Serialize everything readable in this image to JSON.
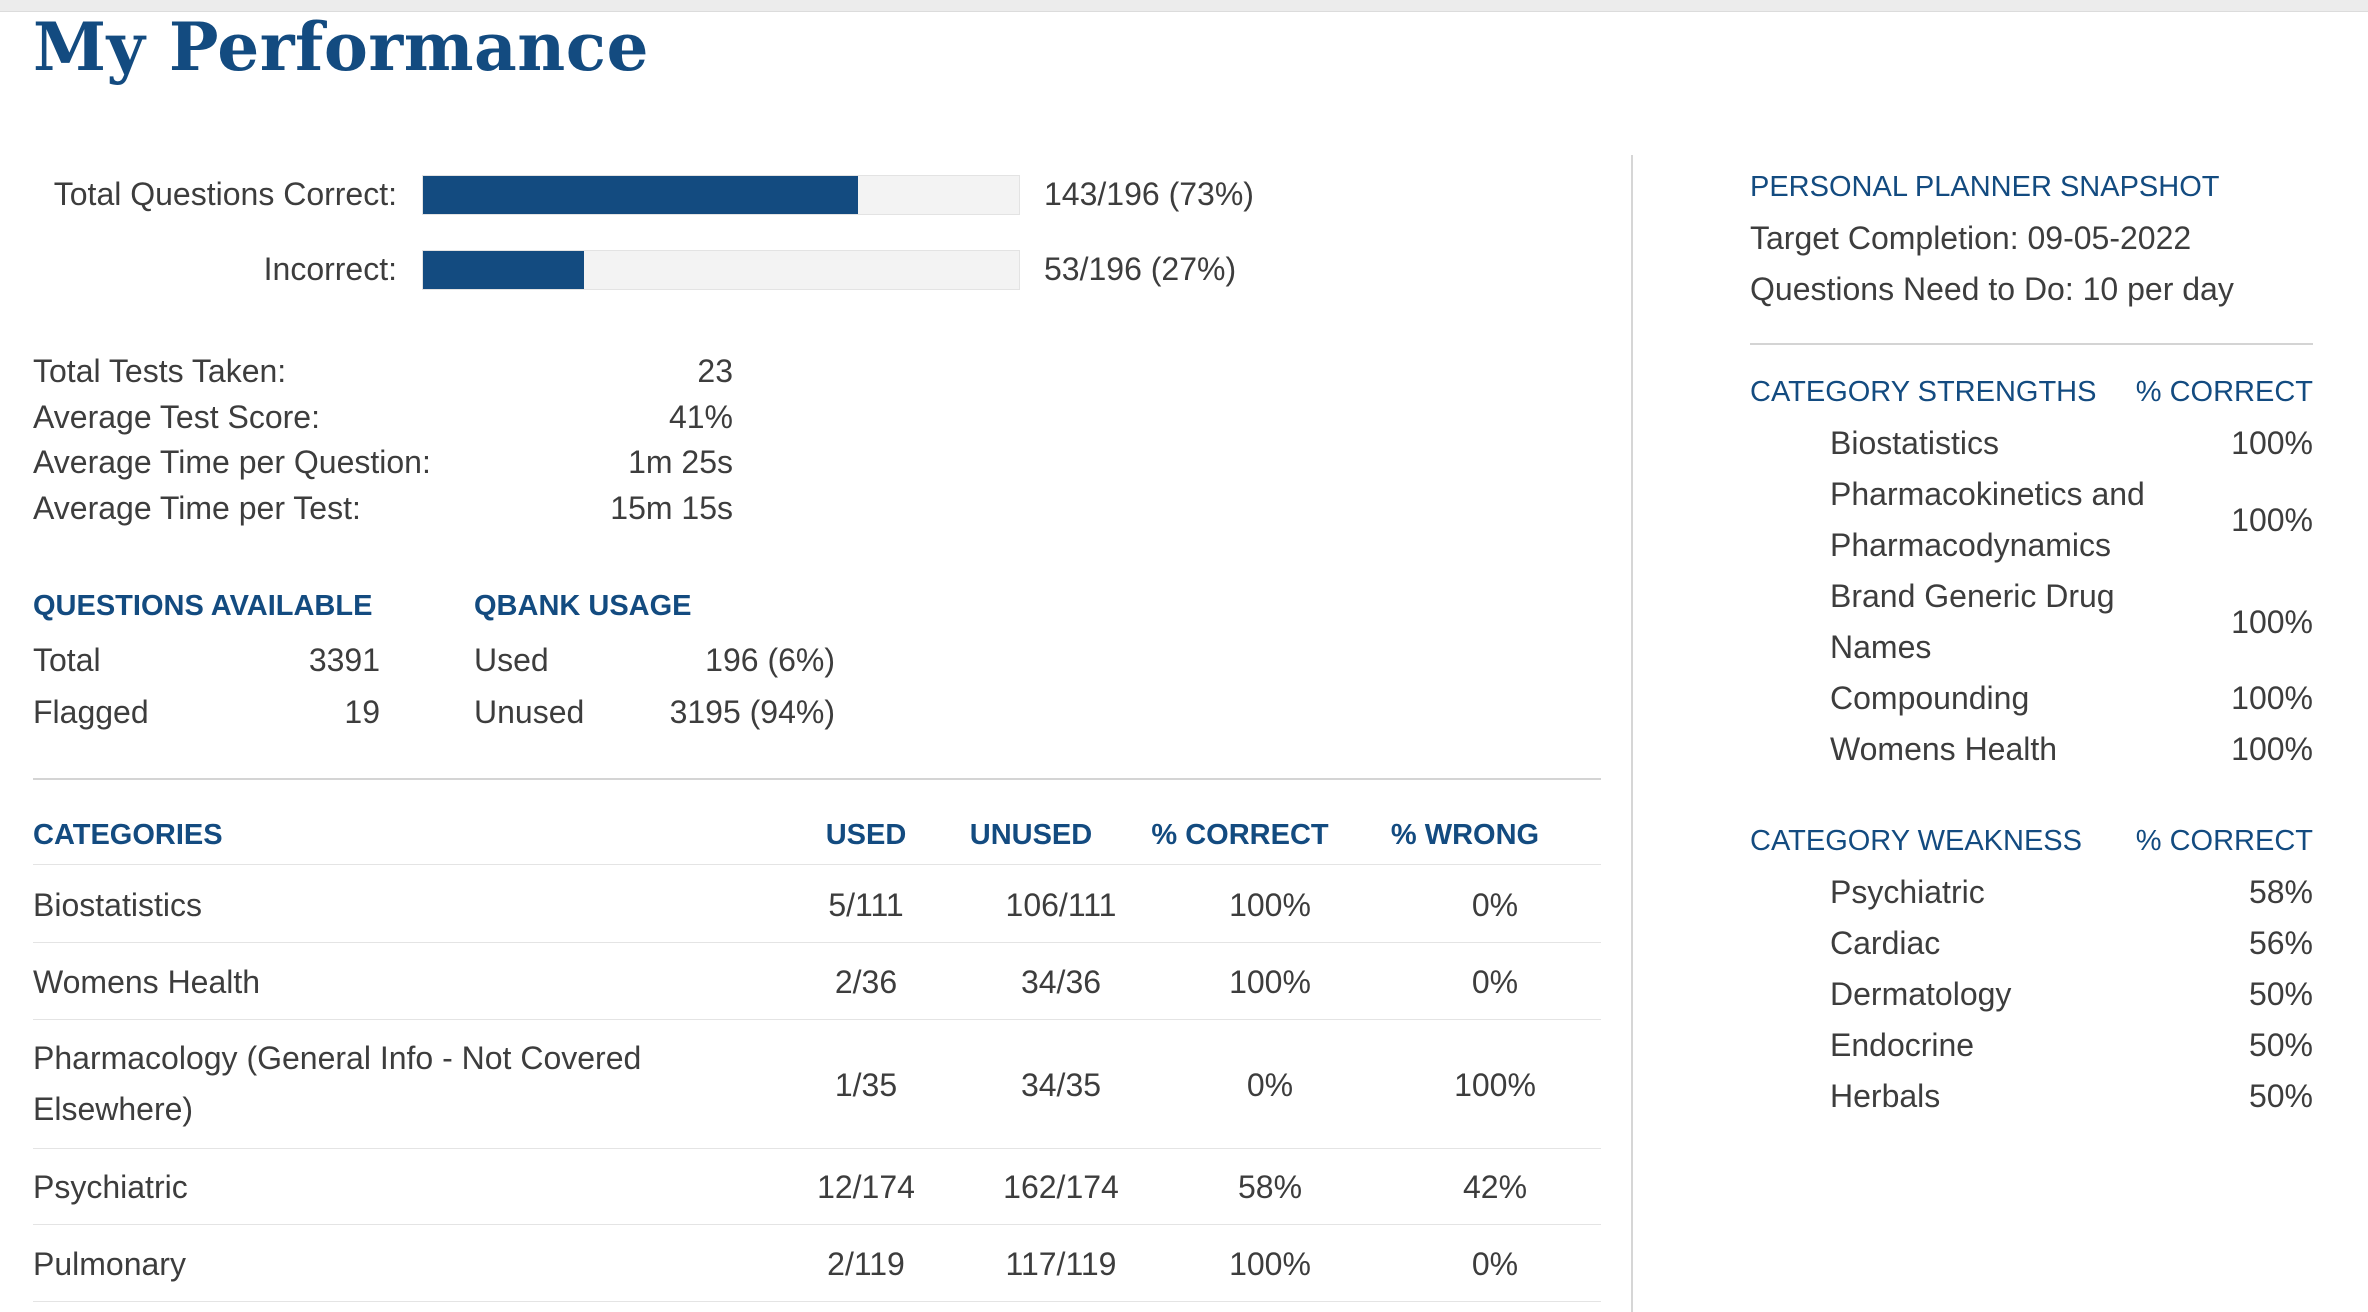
{
  "page_title": "My Performance",
  "score_bars": {
    "correct_label": "Total Questions Correct:",
    "correct_value": "143/196 (73%)",
    "correct_fraction": 0.73,
    "incorrect_label": "Incorrect:",
    "incorrect_value": "53/196 (27%)",
    "incorrect_fraction": 0.27
  },
  "stats": [
    {
      "label": "Total Tests Taken:",
      "value": "23"
    },
    {
      "label": "Average Test Score:",
      "value": "41%"
    },
    {
      "label": "Average Time per Question:",
      "value": "1m 25s"
    },
    {
      "label": "Average Time per Test:",
      "value": "15m 15s"
    }
  ],
  "questions_available": {
    "heading": "QUESTIONS AVAILABLE",
    "rows": [
      {
        "label": "Total",
        "value": "3391"
      },
      {
        "label": "Flagged",
        "value": "19"
      }
    ]
  },
  "qbank_usage": {
    "heading": "QBANK USAGE",
    "rows": [
      {
        "label": "Used",
        "value": "196 (6%)"
      },
      {
        "label": "Unused",
        "value": "3195 (94%)"
      }
    ]
  },
  "categories_table": {
    "headers": {
      "category": "CATEGORIES",
      "used": "USED",
      "unused": "UNUSED",
      "correct": "% CORRECT",
      "wrong": "% WRONG"
    },
    "rows": [
      {
        "name": "Biostatistics",
        "name2": "",
        "used": "5/111",
        "unused": "106/111",
        "correct": "100%",
        "wrong": "0%"
      },
      {
        "name": "Womens Health",
        "name2": "",
        "used": "2/36",
        "unused": "34/36",
        "correct": "100%",
        "wrong": "0%"
      },
      {
        "name": "Pharmacology (General Info - Not Covered",
        "name2": "Elsewhere)",
        "used": "1/35",
        "unused": "34/35",
        "correct": "0%",
        "wrong": "100%"
      },
      {
        "name": "Psychiatric",
        "name2": "",
        "used": "12/174",
        "unused": "162/174",
        "correct": "58%",
        "wrong": "42%"
      },
      {
        "name": "Pulmonary",
        "name2": "",
        "used": "2/119",
        "unused": "117/119",
        "correct": "100%",
        "wrong": "0%"
      }
    ]
  },
  "planner": {
    "heading": "PERSONAL PLANNER SNAPSHOT",
    "target_completion": "Target Completion: 09-05-2022",
    "questions_need": "Questions Need to Do: 10 per day"
  },
  "strengths": {
    "heading": "CATEGORY STRENGTHS",
    "col": "% CORRECT",
    "rows": [
      {
        "name": "Biostatistics",
        "name2": "",
        "value": "100%"
      },
      {
        "name": "Pharmacokinetics and",
        "name2": "Pharmacodynamics",
        "value": "100%"
      },
      {
        "name": "Brand Generic Drug",
        "name2": "Names",
        "value": "100%"
      },
      {
        "name": "Compounding",
        "name2": "",
        "value": "100%"
      },
      {
        "name": "Womens Health",
        "name2": "",
        "value": "100%"
      }
    ]
  },
  "weakness": {
    "heading": "CATEGORY WEAKNESS",
    "col": "% CORRECT",
    "rows": [
      {
        "name": "Psychiatric",
        "value": "58%"
      },
      {
        "name": "Cardiac",
        "value": "56%"
      },
      {
        "name": "Dermatology",
        "value": "50%"
      },
      {
        "name": "Endocrine",
        "value": "50%"
      },
      {
        "name": "Herbals",
        "value": "50%"
      }
    ]
  },
  "colors": {
    "brand_blue": "#134b80",
    "bar_track": "#f3f3f3",
    "text": "#3d3d3d"
  }
}
